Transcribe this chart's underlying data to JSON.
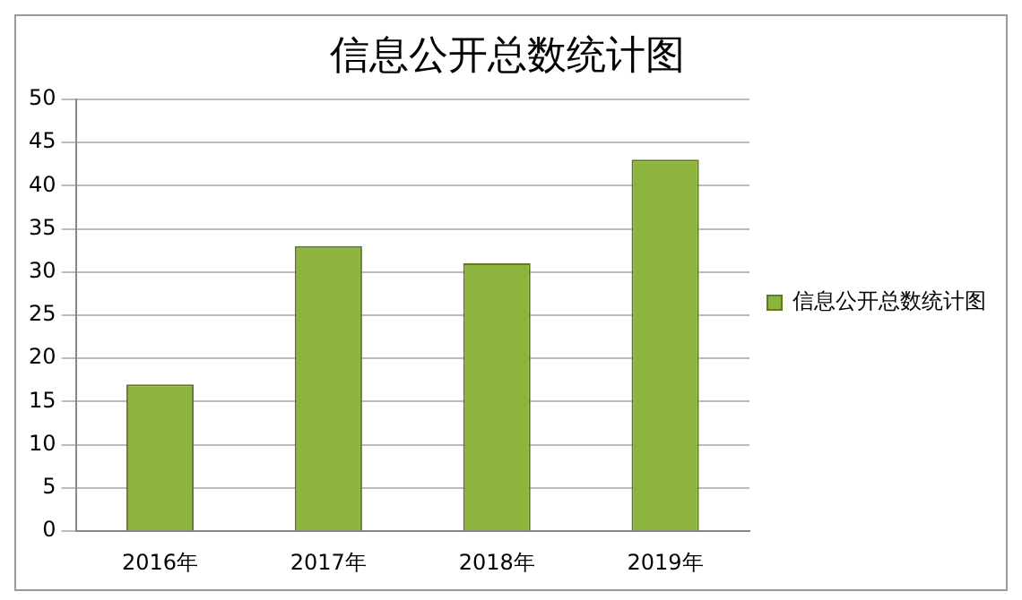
{
  "chart_data": {
    "type": "bar",
    "title": "信息公开总数统计图",
    "categories": [
      "2016年",
      "2017年",
      "2018年",
      "2019年"
    ],
    "series": [
      {
        "name": "信息公开总数统计图",
        "color": "#8db43c",
        "values": [
          17,
          33,
          31,
          43
        ]
      }
    ],
    "ylim": [
      0,
      50
    ],
    "yticks": [
      0,
      5,
      10,
      15,
      20,
      25,
      30,
      35,
      40,
      45,
      50
    ],
    "grid": "y",
    "legend": "right"
  }
}
